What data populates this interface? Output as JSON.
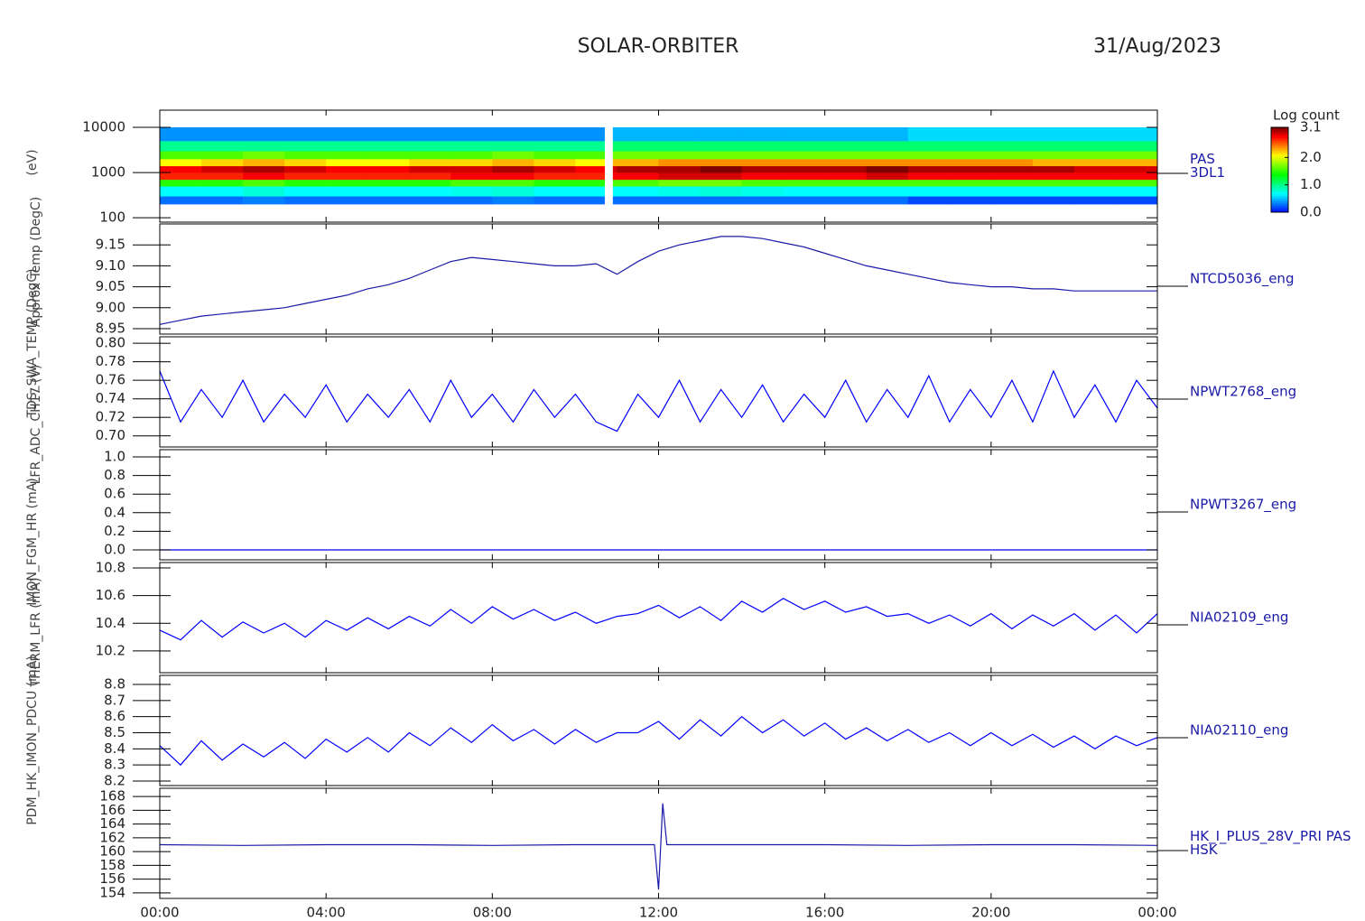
{
  "title": "SOLAR-ORBITER",
  "date": "31/Aug/2023",
  "chart_data": [
    {
      "type": "heatmap",
      "ylabel": "(eV)",
      "right_label": [
        "PAS",
        "3DL1"
      ],
      "log_y": true,
      "ylim": [
        80,
        24000
      ],
      "yticks": [
        100,
        1000,
        10000
      ],
      "xbins": [
        0,
        1,
        2,
        3,
        4,
        5,
        6,
        7,
        8,
        9,
        10,
        10.7,
        10.9,
        11,
        12,
        13,
        14,
        15,
        16,
        17,
        18,
        19,
        20,
        21,
        22,
        23,
        24
      ],
      "ybins": [
        200,
        300,
        500,
        700,
        1000,
        1400,
        2000,
        3000,
        5000,
        10000
      ],
      "z": [
        [
          0.3,
          0.3,
          0.35,
          0.3,
          0.3,
          0.3,
          0.3,
          0.3,
          0.35,
          0.3,
          0.3,
          null,
          0.3,
          0.3,
          0.3,
          0.3,
          0.3,
          0.3,
          0.3,
          0.3,
          0.2,
          0.2,
          0.2,
          0.2,
          0.2,
          0.2
        ],
        [
          0.7,
          0.7,
          0.8,
          0.7,
          0.7,
          0.7,
          0.7,
          0.75,
          0.8,
          0.7,
          0.7,
          null,
          0.7,
          0.7,
          0.75,
          0.8,
          0.75,
          0.7,
          0.7,
          0.7,
          0.7,
          0.7,
          0.7,
          0.7,
          0.7,
          0.7
        ],
        [
          1.5,
          1.5,
          1.6,
          1.5,
          1.5,
          1.5,
          1.5,
          1.6,
          1.6,
          1.5,
          1.5,
          null,
          1.6,
          1.6,
          1.7,
          1.7,
          1.6,
          1.6,
          1.6,
          1.6,
          1.6,
          1.6,
          1.6,
          1.6,
          1.6,
          1.6
        ],
        [
          2.7,
          2.7,
          2.8,
          2.7,
          2.7,
          2.7,
          2.7,
          2.8,
          2.8,
          2.7,
          2.7,
          null,
          2.8,
          2.8,
          2.9,
          2.9,
          2.8,
          2.8,
          2.8,
          2.9,
          2.8,
          2.8,
          2.8,
          2.8,
          2.8,
          2.8
        ],
        [
          2.8,
          2.9,
          3.0,
          2.9,
          2.8,
          2.8,
          2.9,
          2.9,
          3.0,
          2.9,
          2.8,
          null,
          2.9,
          3.0,
          3.0,
          3.1,
          3.0,
          3.0,
          3.0,
          3.1,
          3.0,
          3.0,
          3.0,
          3.0,
          2.9,
          2.9
        ],
        [
          2.1,
          2.2,
          2.3,
          2.2,
          2.1,
          2.1,
          2.2,
          2.2,
          2.3,
          2.2,
          2.1,
          null,
          2.3,
          2.3,
          2.4,
          2.4,
          2.4,
          2.4,
          2.4,
          2.4,
          2.4,
          2.4,
          2.4,
          2.3,
          2.3,
          2.3
        ],
        [
          1.6,
          1.6,
          1.7,
          1.6,
          1.6,
          1.6,
          1.6,
          1.6,
          1.7,
          1.6,
          1.6,
          null,
          1.7,
          1.7,
          1.7,
          1.7,
          1.7,
          1.7,
          1.7,
          1.7,
          1.7,
          1.7,
          1.7,
          1.7,
          1.7,
          1.7
        ],
        [
          1.0,
          1.0,
          1.0,
          1.0,
          1.0,
          1.0,
          1.0,
          1.0,
          1.0,
          1.0,
          1.0,
          null,
          1.1,
          1.1,
          1.1,
          1.1,
          1.1,
          1.1,
          1.1,
          1.1,
          1.1,
          1.1,
          1.1,
          1.1,
          1.1,
          1.1
        ],
        [
          0.4,
          0.4,
          0.4,
          0.4,
          0.4,
          0.4,
          0.4,
          0.4,
          0.4,
          0.4,
          0.4,
          null,
          0.5,
          0.5,
          0.5,
          0.5,
          0.5,
          0.5,
          0.5,
          0.5,
          0.6,
          0.6,
          0.6,
          0.6,
          0.6,
          0.6
        ]
      ],
      "zlim": [
        0,
        3.1
      ],
      "zticks": [
        {
          "value": 0,
          "label": "0.0"
        },
        {
          "value": 1,
          "label": "1.0"
        },
        {
          "value": 2,
          "label": "2.0"
        },
        3.1
      ],
      "colorbar_title": "Log count"
    },
    {
      "type": "line",
      "ylabel": "Approx Temp (DegC)",
      "right_label": [
        "NTCD5036_eng"
      ],
      "color": "#1a1aa8",
      "ylim": [
        8.937,
        9.2
      ],
      "yticks": [
        8.95,
        {
          "value": 9,
          "label": "9.00"
        },
        9.05,
        {
          "value": 9.1,
          "label": "9.10"
        },
        9.15
      ],
      "x": [
        0,
        0.5,
        1,
        1.5,
        2,
        2.5,
        3,
        3.5,
        4,
        4.5,
        5,
        5.5,
        6,
        6.5,
        7,
        7.5,
        8,
        8.5,
        9,
        9.5,
        10,
        10.5,
        11,
        11.5,
        12,
        12.5,
        13,
        13.5,
        14,
        14.5,
        15,
        15.5,
        16,
        16.5,
        17,
        17.5,
        18,
        18.5,
        19,
        19.5,
        20,
        20.5,
        21,
        21.5,
        22,
        22.5,
        23,
        23.5,
        24
      ],
      "values": [
        8.96,
        8.97,
        8.98,
        8.985,
        8.99,
        8.995,
        9.0,
        9.01,
        9.02,
        9.03,
        9.045,
        9.055,
        9.07,
        9.09,
        9.11,
        9.12,
        9.115,
        9.11,
        9.105,
        9.1,
        9.1,
        9.105,
        9.08,
        9.11,
        9.135,
        9.15,
        9.16,
        9.17,
        9.17,
        9.165,
        9.155,
        9.145,
        9.13,
        9.115,
        9.1,
        9.09,
        9.08,
        9.07,
        9.06,
        9.055,
        9.05,
        9.05,
        9.045,
        9.045,
        9.04,
        9.04,
        9.04,
        9.04,
        9.04
      ]
    },
    {
      "type": "line",
      "ylabel": "TDS_SWA_TEMP (DegC)",
      "right_label": [
        "NPWT2768_eng"
      ],
      "color": "#0000ff",
      "ylim": [
        0.688,
        0.807
      ],
      "yticks": [
        {
          "value": 0.7,
          "label": "0.70"
        },
        0.72,
        0.74,
        0.76,
        0.78,
        {
          "value": 0.8,
          "label": "0.80"
        }
      ],
      "x": [
        0,
        0.5,
        1,
        1.5,
        2,
        2.5,
        3,
        3.5,
        4,
        4.5,
        5,
        5.5,
        6,
        6.5,
        7,
        7.5,
        8,
        8.5,
        9,
        9.5,
        10,
        10.5,
        11,
        11.5,
        12,
        12.5,
        13,
        13.5,
        14,
        14.5,
        15,
        15.5,
        16,
        16.5,
        17,
        17.5,
        18,
        18.5,
        19,
        19.5,
        20,
        20.5,
        21,
        21.5,
        22,
        22.5,
        23,
        23.5,
        24
      ],
      "values": [
        0.77,
        0.715,
        0.75,
        0.72,
        0.76,
        0.715,
        0.745,
        0.72,
        0.755,
        0.715,
        0.745,
        0.72,
        0.75,
        0.715,
        0.76,
        0.72,
        0.745,
        0.715,
        0.75,
        0.72,
        0.745,
        0.715,
        0.705,
        0.745,
        0.72,
        0.76,
        0.715,
        0.75,
        0.72,
        0.755,
        0.715,
        0.745,
        0.72,
        0.76,
        0.715,
        0.75,
        0.72,
        0.765,
        0.715,
        0.75,
        0.72,
        0.76,
        0.715,
        0.77,
        0.72,
        0.755,
        0.715,
        0.76,
        0.73
      ]
    },
    {
      "type": "line",
      "ylabel": "LFR_ADC_CH17 (V)",
      "right_label": [
        "NPWT3267_eng"
      ],
      "color": "#0000ff",
      "ylim": [
        -0.107,
        1.078
      ],
      "yticks": [
        {
          "value": 0,
          "label": "0.0"
        },
        0.2,
        0.4,
        0.6,
        0.8,
        {
          "value": 1,
          "label": "1.0"
        }
      ],
      "x": [
        0,
        0.5,
        1,
        1.5,
        2,
        2.5,
        3,
        3.5,
        4,
        4.5,
        5,
        5.5,
        6,
        6.5,
        7,
        7.5,
        8,
        8.5,
        9,
        9.5,
        10,
        10.5,
        11,
        11.5,
        12,
        12.5,
        13,
        13.5,
        14,
        14.5,
        15,
        15.5,
        16,
        16.5,
        17,
        17.5,
        18,
        18.5,
        19,
        19.5,
        20,
        20.5,
        21,
        21.5,
        22,
        22.5,
        23,
        23.5,
        24
      ],
      "values": [
        0,
        0,
        0,
        0,
        0,
        0,
        0,
        0,
        0,
        0,
        0,
        0,
        0,
        0,
        0,
        0,
        0,
        0,
        0,
        0,
        0,
        0,
        0,
        0,
        0,
        0,
        0,
        0,
        0,
        0,
        0,
        0,
        0,
        0,
        0,
        0,
        0,
        0,
        0,
        0,
        0,
        0,
        0,
        0,
        0,
        0,
        0,
        0,
        0
      ]
    },
    {
      "type": "line",
      "ylabel": "IMON_FGM_HR (mA)",
      "right_label": [
        "NIA02109_eng"
      ],
      "color": "#0000ff",
      "ylim": [
        10.043,
        10.839
      ],
      "yticks": [
        10.2,
        10.4,
        10.6,
        10.8
      ],
      "x": [
        0,
        0.5,
        1,
        1.5,
        2,
        2.5,
        3,
        3.5,
        4,
        4.5,
        5,
        5.5,
        6,
        6.5,
        7,
        7.5,
        8,
        8.5,
        9,
        9.5,
        10,
        10.5,
        11,
        11.5,
        12,
        12.5,
        13,
        13.5,
        14,
        14.5,
        15,
        15.5,
        16,
        16.5,
        17,
        17.5,
        18,
        18.5,
        19,
        19.5,
        20,
        20.5,
        21,
        21.5,
        22,
        22.5,
        23,
        23.5,
        24
      ],
      "values": [
        10.35,
        10.28,
        10.42,
        10.3,
        10.41,
        10.33,
        10.4,
        10.3,
        10.42,
        10.35,
        10.44,
        10.36,
        10.45,
        10.38,
        10.5,
        10.4,
        10.52,
        10.43,
        10.5,
        10.42,
        10.48,
        10.4,
        10.45,
        10.47,
        10.53,
        10.44,
        10.52,
        10.42,
        10.56,
        10.48,
        10.58,
        10.5,
        10.56,
        10.48,
        10.52,
        10.45,
        10.47,
        10.4,
        10.46,
        10.38,
        10.47,
        10.36,
        10.46,
        10.38,
        10.47,
        10.35,
        10.46,
        10.33,
        10.47
      ]
    },
    {
      "type": "line",
      "ylabel": "THERM_LFR (mA)",
      "right_label": [
        "NIA02110_eng"
      ],
      "color": "#0000ff",
      "ylim": [
        8.172,
        8.856
      ],
      "yticks": [
        8.2,
        8.3,
        8.4,
        8.5,
        8.6,
        8.7,
        8.8
      ],
      "x": [
        0,
        0.5,
        1,
        1.5,
        2,
        2.5,
        3,
        3.5,
        4,
        4.5,
        5,
        5.5,
        6,
        6.5,
        7,
        7.5,
        8,
        8.5,
        9,
        9.5,
        10,
        10.5,
        11,
        11.5,
        12,
        12.5,
        13,
        13.5,
        14,
        14.5,
        15,
        15.5,
        16,
        16.5,
        17,
        17.5,
        18,
        18.5,
        19,
        19.5,
        20,
        20.5,
        21,
        21.5,
        22,
        22.5,
        23,
        23.5,
        24
      ],
      "values": [
        8.42,
        8.3,
        8.45,
        8.33,
        8.43,
        8.35,
        8.44,
        8.34,
        8.46,
        8.38,
        8.47,
        8.38,
        8.5,
        8.42,
        8.53,
        8.44,
        8.55,
        8.45,
        8.52,
        8.43,
        8.52,
        8.44,
        8.5,
        8.5,
        8.57,
        8.46,
        8.58,
        8.48,
        8.6,
        8.5,
        8.58,
        8.48,
        8.56,
        8.46,
        8.53,
        8.45,
        8.52,
        8.44,
        8.5,
        8.42,
        8.5,
        8.42,
        8.49,
        8.41,
        8.48,
        8.4,
        8.48,
        8.42,
        8.47
      ]
    },
    {
      "type": "line",
      "ylabel": "PDM_HK_IMON_PDCU (mA)",
      "right_label": [
        "HK_I_PLUS_28V_PRI PAS",
        "HSK"
      ],
      "color": "#1a1aa8",
      "ylim": [
        153.2,
        169.2
      ],
      "yticks": [
        154,
        156,
        158,
        160,
        162,
        164,
        166,
        168
      ],
      "x": [
        0,
        2,
        4,
        6,
        8,
        10,
        11.9,
        12,
        12.1,
        12.2,
        14,
        16,
        18,
        20,
        22,
        24
      ],
      "values": [
        161,
        160.9,
        161,
        161,
        160.9,
        161,
        161,
        154.5,
        167,
        161,
        161,
        161,
        160.9,
        161,
        161,
        160.9
      ],
      "xlim": [
        0,
        24
      ],
      "xticks": [
        {
          "value": 0,
          "label": "00:00"
        },
        {
          "value": 4,
          "label": "04:00"
        },
        {
          "value": 8,
          "label": "08:00"
        },
        {
          "value": 12,
          "label": "12:00"
        },
        {
          "value": 16,
          "label": "16:00"
        },
        {
          "value": 20,
          "label": "20:00"
        },
        {
          "value": 24,
          "label": "00:00"
        }
      ]
    }
  ]
}
